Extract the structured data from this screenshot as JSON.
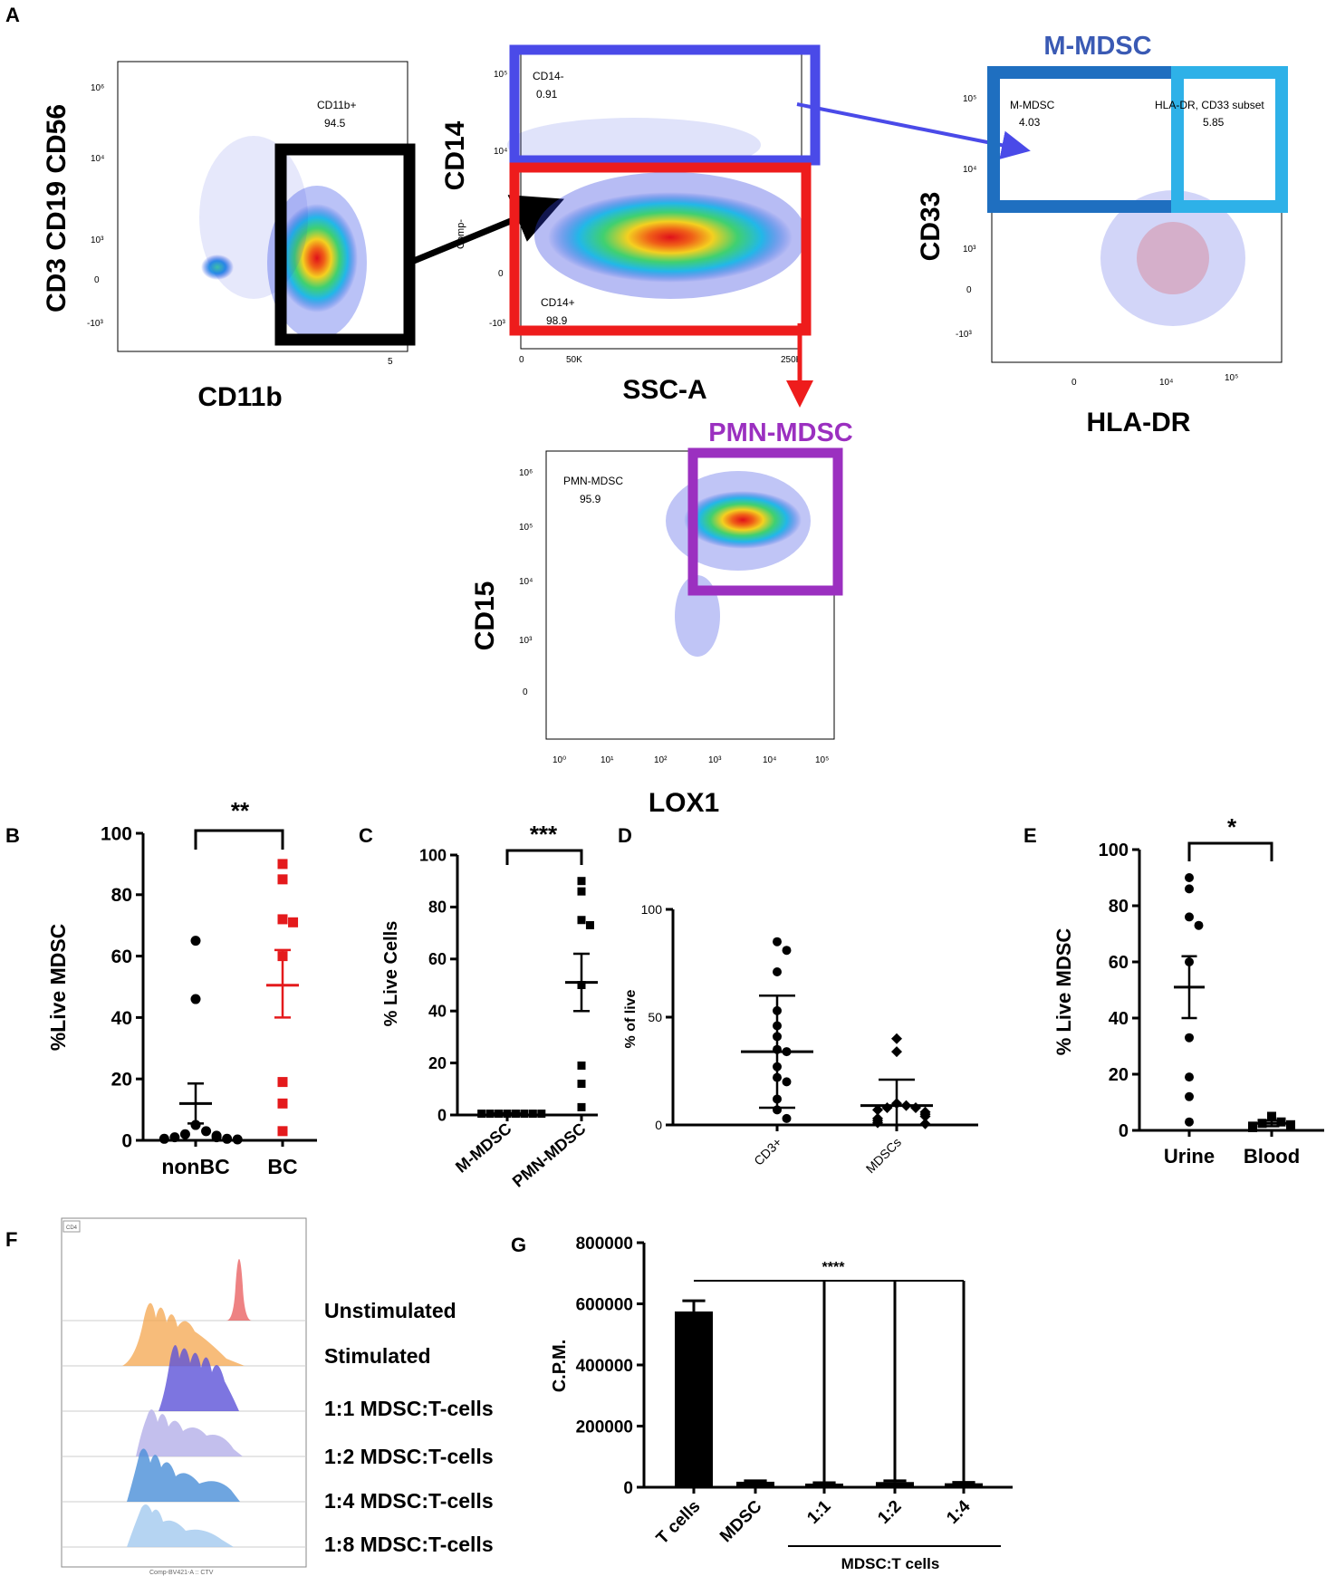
{
  "panels": {
    "A": "A",
    "B": "B",
    "C": "C",
    "D": "D",
    "E": "E",
    "F": "F",
    "G": "G"
  },
  "flow": {
    "p1": {
      "ylabel": "CD3 CD19 CD56",
      "xlabel": "CD11b",
      "gate_name": "CD11b+",
      "gate_value": "94.5",
      "yticks": [
        "10⁶",
        "10⁴",
        "10³",
        "0",
        "-10³"
      ],
      "xticks": [
        "5"
      ]
    },
    "p2": {
      "ylabel": "CD14",
      "xlabel": "SSC-A",
      "yaxis_small": "Comp-",
      "gate1_name": "CD14-",
      "gate1_value": "0.91",
      "gate2_name": "CD14+",
      "gate2_value": "98.9",
      "yticks": [
        "10⁵",
        "10⁴",
        "0",
        "-10³"
      ],
      "xticks": [
        "0",
        "50K",
        "250K"
      ]
    },
    "p3": {
      "title": "M-MDSC",
      "ylabel": "CD33",
      "xlabel": "HLA-DR",
      "gate1_name": "M-MDSC",
      "gate1_value": "4.03",
      "gate2_name": "HLA-DR, CD33 subset",
      "gate2_value": "5.85",
      "yticks": [
        "10⁵",
        "10⁴",
        "10³",
        "0",
        "-10³"
      ],
      "xticks": [
        "0",
        "10⁴",
        "10⁵"
      ]
    },
    "p4": {
      "title": "PMN-MDSC",
      "ylabel": "CD15",
      "xlabel": "LOX1",
      "gate_name": "PMN-MDSC",
      "gate_value": "95.9",
      "yticks": [
        "10⁶",
        "10⁵",
        "10⁴",
        "10³",
        "0"
      ],
      "xticks": [
        "10⁰",
        "10¹",
        "10²",
        "10³",
        "10⁴",
        "10⁵"
      ]
    }
  },
  "chart_data": [
    {
      "panel": "B",
      "type": "scatter",
      "ylabel": "%Live MDSC",
      "ylim": [
        0,
        100
      ],
      "yticks": [
        "0",
        "20",
        "40",
        "60",
        "80",
        "100"
      ],
      "categories": [
        "nonBC",
        "BC"
      ],
      "series": [
        {
          "name": "nonBC",
          "color": "#000000",
          "marker": "circle",
          "values": [
            65,
            46,
            5,
            3,
            2,
            1.5,
            1,
            1,
            0.5,
            0.5,
            0.3
          ],
          "mean": 12,
          "sem_low": 5.5,
          "sem_high": 18.5
        },
        {
          "name": "BC",
          "color": "#e41a1c",
          "marker": "square",
          "values": [
            90,
            85,
            72,
            71,
            60,
            19,
            12,
            3
          ],
          "mean": 50.5,
          "sem_low": 40,
          "sem_high": 62
        }
      ],
      "significance": "**"
    },
    {
      "panel": "C",
      "type": "scatter",
      "ylabel": "% Live Cells",
      "ylim": [
        0,
        100
      ],
      "yticks": [
        "0",
        "20",
        "40",
        "60",
        "80",
        "100"
      ],
      "categories": [
        "M-MDSC",
        "PMN-MDSC"
      ],
      "series": [
        {
          "name": "M-MDSC",
          "color": "#000000",
          "marker": "square",
          "values": [
            0.5,
            0.5,
            0.5,
            0.5,
            0.5,
            0.5,
            0.5,
            0.5
          ],
          "mean": 0.5,
          "sem_low": 0.4,
          "sem_high": 0.6
        },
        {
          "name": "PMN-MDSC",
          "color": "#000000",
          "marker": "square",
          "values": [
            90,
            86,
            75,
            73,
            50,
            19,
            12,
            3
          ],
          "mean": 51,
          "sem_low": 40,
          "sem_high": 62
        }
      ],
      "significance": "***"
    },
    {
      "panel": "D",
      "type": "scatter",
      "ylabel": "% of live",
      "ylim": [
        0,
        100
      ],
      "yticks": [
        "0",
        "50",
        "100"
      ],
      "categories": [
        "CD3+",
        "MDSCs"
      ],
      "series": [
        {
          "name": "CD3+",
          "color": "#000000",
          "marker": "circle",
          "values": [
            85,
            81,
            71,
            53,
            46,
            41,
            35,
            34,
            27,
            22,
            20,
            12,
            7,
            3
          ],
          "mean": 34,
          "sem_low": 8,
          "sem_high": 60
        },
        {
          "name": "MDSCs",
          "color": "#000000",
          "marker": "diamond",
          "values": [
            40,
            34,
            10,
            9,
            8,
            8,
            7,
            6,
            5,
            4,
            3,
            2,
            1,
            0.5
          ],
          "mean": 9,
          "sem_low": 0,
          "sem_high": 21
        }
      ]
    },
    {
      "panel": "E",
      "type": "scatter",
      "ylabel": "% Live MDSC",
      "ylim": [
        0,
        100
      ],
      "yticks": [
        "0",
        "20",
        "40",
        "60",
        "80",
        "100"
      ],
      "categories": [
        "Urine",
        "Blood"
      ],
      "series": [
        {
          "name": "Urine",
          "color": "#000000",
          "marker": "circle",
          "values": [
            90,
            86,
            76,
            73,
            60,
            33,
            19,
            12,
            3
          ],
          "mean": 51,
          "sem_low": 40,
          "sem_high": 62
        },
        {
          "name": "Blood",
          "color": "#000000",
          "marker": "square",
          "values": [
            5,
            3,
            2.5,
            2,
            1.5,
            1
          ],
          "mean": 2.5,
          "sem_low": 1.5,
          "sem_high": 3.5
        }
      ],
      "significance": "*"
    },
    {
      "panel": "G",
      "type": "bar",
      "ylabel": "C.P.M.",
      "ylim": [
        0,
        800000
      ],
      "yticks": [
        "0",
        "200000",
        "400000",
        "600000",
        "800000"
      ],
      "categories": [
        "T cells",
        "MDSC",
        "1:1",
        "1:2",
        "1:4"
      ],
      "values": [
        575000,
        18000,
        12000,
        17000,
        13000
      ],
      "errors": [
        35000,
        3000,
        3000,
        4000,
        3000
      ],
      "group_label": "MDSC:T cells",
      "significance": "****"
    },
    {
      "panel": "F",
      "type": "histogram-stack",
      "xlabel": "Comp-BV421-A :: CTV",
      "legend": [
        "Unstimulated",
        "Stimulated",
        "1:1 MDSC:T-cells",
        "1:2 MDSC:T-cells",
        "1:4 MDSC:T-cells",
        "1:8 MDSC:T-cells"
      ],
      "colors": [
        "#e8585a",
        "#f4a54e",
        "#5c52d8",
        "#b8b4ea",
        "#4a8fd8",
        "#a8cdf0"
      ],
      "box_label": "CD4"
    }
  ],
  "colors": {
    "gate_black": "#000000",
    "gate_blue": "#4a4ae8",
    "gate_red": "#ee1c1c",
    "gate_dark_blue": "#1f6fc0",
    "gate_light_blue": "#2eb1e8",
    "gate_purple": "#9b30c0",
    "mmdsc_title": "#3a5ab4",
    "pmn_title": "#9b30c0"
  }
}
